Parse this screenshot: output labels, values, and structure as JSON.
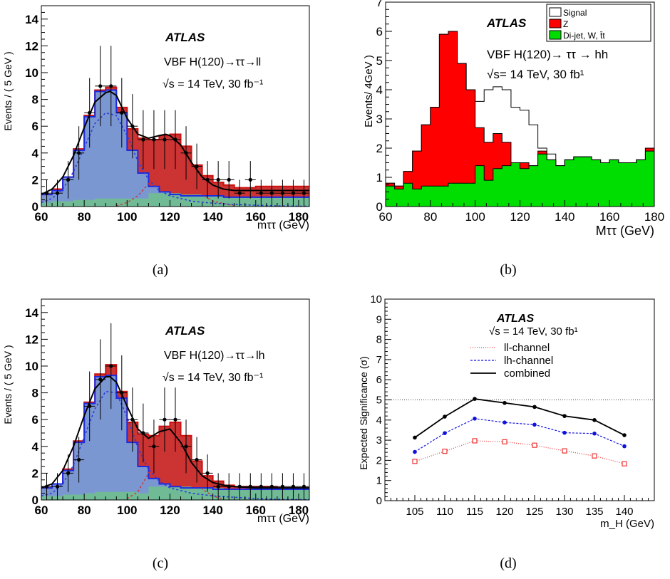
{
  "chart_data": [
    {
      "panel": "a",
      "type": "bar",
      "caption": "(a)",
      "ylabel": "Events / ( 5 GeV )",
      "xlabel": "mττ (GeV)",
      "xlim": [
        60,
        185
      ],
      "ylim": [
        0,
        15
      ],
      "xticks": [
        60,
        80,
        100,
        120,
        140,
        160,
        180
      ],
      "yticks": [
        0,
        2,
        4,
        6,
        8,
        10,
        12,
        14
      ],
      "annotations": [
        "ATLAS",
        "VBF H(120)→ττ→ll",
        "√s = 14 TeV,   30 fb⁻¹"
      ],
      "bin_edges": [
        60,
        65,
        70,
        75,
        80,
        85,
        90,
        95,
        100,
        105,
        110,
        115,
        120,
        125,
        130,
        135,
        140,
        145,
        150,
        155,
        160,
        165,
        170,
        175,
        180,
        185
      ],
      "series": [
        {
          "role": "bkg-green",
          "color": "#6fbf8f",
          "values": [
            0.3,
            0.4,
            0.4,
            0.5,
            0.5,
            0.6,
            0.6,
            0.6,
            0.6,
            0.6,
            1,
            1,
            1,
            0.9,
            0.9,
            0.8,
            0.8,
            0.7,
            0.7,
            0.7,
            0.7,
            0.7,
            0.7,
            0.7,
            0.7
          ]
        },
        {
          "role": "blue",
          "color": "#7b97d1",
          "values": [
            0.9,
            1.2,
            2.2,
            4.2,
            6.7,
            8.6,
            8.7,
            7,
            4.2,
            2.5,
            1.5,
            1.1,
            0.9,
            0.8,
            0.8,
            0.8,
            0.8,
            0.7,
            0.7,
            0.7,
            0.7,
            0.7,
            0.7,
            0.7,
            0.7
          ]
        },
        {
          "role": "red",
          "color": "#cc3333",
          "values": [
            0.9,
            1.3,
            2.2,
            4.3,
            6.8,
            8.7,
            8.9,
            7.4,
            5.8,
            5.1,
            5,
            5.3,
            5.4,
            4.5,
            3.1,
            2.3,
            1.8,
            1.6,
            1.4,
            1.4,
            1.5,
            1.5,
            1.5,
            1.5,
            1.5
          ]
        }
      ],
      "points": {
        "x": [
          62.5,
          67.5,
          72.5,
          77.5,
          82.5,
          87.5,
          92.5,
          97.5,
          102.5,
          107.5,
          112.5,
          117.5,
          122.5,
          127.5,
          132.5,
          137.5,
          142.5,
          147.5,
          152.5,
          157.5,
          162.5,
          167.5,
          172.5,
          177.5,
          182.5
        ],
        "y": [
          1,
          1,
          2,
          4,
          7,
          9,
          9,
          7,
          6,
          5,
          5,
          5,
          5,
          4,
          3,
          2,
          2,
          2,
          1,
          2,
          1,
          1,
          1,
          1,
          1
        ],
        "err": [
          1,
          1,
          1.4,
          2,
          2.6,
          3,
          3,
          2.6,
          2.4,
          2.2,
          2.2,
          2.2,
          2.2,
          2,
          1.7,
          1.4,
          1.4,
          1.4,
          1,
          1.4,
          1,
          1,
          1,
          1,
          1
        ]
      },
      "curves": {
        "total": {
          "color": "#000000",
          "x": [
            60,
            65,
            70,
            75,
            80,
            85,
            90,
            92,
            95,
            100,
            105,
            110,
            115,
            118,
            120,
            125,
            130,
            135,
            140,
            145,
            150,
            160,
            170,
            180,
            185
          ],
          "y": [
            0.9,
            1.3,
            2.2,
            3.8,
            5.9,
            7.8,
            8.5,
            8.6,
            8.3,
            6.6,
            5.4,
            5.1,
            5.3,
            5.4,
            5.3,
            4.6,
            3.3,
            2.2,
            1.6,
            1.3,
            1.2,
            1.2,
            1.2,
            1.2,
            1.2
          ]
        },
        "blue_fit": {
          "color": "#2c3dd8",
          "x": [
            60,
            65,
            70,
            75,
            80,
            85,
            90,
            95,
            100,
            105,
            110,
            115,
            120,
            130,
            140,
            150,
            160,
            170,
            185
          ],
          "y": [
            0.3,
            0.6,
            1.3,
            2.6,
            4.4,
            6.2,
            7,
            6.8,
            5.3,
            3.4,
            2,
            1.2,
            0.8,
            0.4,
            0.25,
            0.15,
            0.1,
            0.05,
            0.02
          ]
        },
        "red_fit": {
          "color": "#d03030",
          "x": [
            95,
            100,
            105,
            110,
            115,
            120,
            125,
            130,
            135,
            140,
            150
          ],
          "y": [
            0.05,
            0.3,
            0.8,
            1.7,
            2.8,
            3.3,
            2.8,
            1.8,
            0.9,
            0.4,
            0.05
          ]
        }
      }
    },
    {
      "panel": "b",
      "type": "bar",
      "caption": "(b)",
      "ylabel": "Events/ 4GeV )",
      "xlabel": "Mττ (GeV)",
      "xlim": [
        60,
        180
      ],
      "ylim": [
        0,
        7
      ],
      "xticks": [
        60,
        80,
        100,
        120,
        140,
        160,
        180
      ],
      "yticks": [
        0,
        1,
        2,
        3,
        4,
        5,
        6,
        7
      ],
      "annotations": [
        "ATLAS",
        "VBF H(120)→ ττ → hh",
        "√s= 14 TeV, 30 fb¹"
      ],
      "legend": [
        "Signal",
        "Z",
        "Di-jet, W, t̄t"
      ],
      "legend_position": "top-right",
      "bin_edges": [
        60,
        64,
        68,
        72,
        76,
        80,
        84,
        88,
        92,
        96,
        100,
        104,
        108,
        112,
        116,
        120,
        124,
        128,
        132,
        136,
        140,
        144,
        148,
        152,
        156,
        160,
        164,
        168,
        172,
        176,
        180
      ],
      "series": [
        {
          "name": "Di-jet, W, t̄t",
          "color": "#00dd00",
          "values": [
            0.7,
            0.6,
            0.8,
            0.6,
            0.7,
            0.7,
            0.7,
            0.8,
            0.8,
            0.8,
            1.4,
            0.9,
            1.3,
            1.4,
            1.5,
            1.3,
            1.4,
            1.8,
            1.6,
            1.4,
            1.6,
            1.7,
            1.7,
            1.6,
            1.5,
            1.6,
            1.5,
            1.5,
            1.6,
            1.9
          ]
        },
        {
          "name": "Z",
          "color": "#ff0000",
          "values": [
            0.8,
            0.7,
            1.2,
            1.9,
            2.8,
            3.4,
            5.9,
            6,
            4.9,
            4,
            2.7,
            2.2,
            2.5,
            2.2,
            1.5,
            1.5,
            1.4,
            1.9,
            1.6,
            1.4,
            1.6,
            1.7,
            1.7,
            1.6,
            1.5,
            1.6,
            1.5,
            1.5,
            1.6,
            2
          ]
        },
        {
          "name": "Signal",
          "color": "#ffffff",
          "values": [
            0.8,
            0.7,
            1.2,
            1.9,
            2.8,
            3.4,
            5.9,
            6,
            4.9,
            4,
            3.6,
            4,
            4.1,
            4,
            3.4,
            3.3,
            2.8,
            2,
            1.8,
            1.4,
            1.6,
            1.7,
            1.7,
            1.6,
            1.5,
            1.6,
            1.5,
            1.5,
            1.6,
            2
          ]
        }
      ]
    },
    {
      "panel": "c",
      "type": "bar",
      "caption": "(c)",
      "ylabel": "Events / ( 5 GeV )",
      "xlabel": "mττ (GeV)",
      "xlim": [
        60,
        185
      ],
      "ylim": [
        0,
        15
      ],
      "xticks": [
        60,
        80,
        100,
        120,
        140,
        160,
        180
      ],
      "yticks": [
        0,
        2,
        4,
        6,
        8,
        10,
        12,
        14
      ],
      "annotations": [
        "ATLAS",
        "VBF H(120)→ττ→lh",
        "√s = 14 TeV,   30 fb⁻¹"
      ],
      "bin_edges": [
        60,
        65,
        70,
        75,
        80,
        85,
        90,
        95,
        100,
        105,
        110,
        115,
        120,
        125,
        130,
        135,
        140,
        145,
        150,
        155,
        160,
        165,
        170,
        175,
        180,
        185
      ],
      "series": [
        {
          "role": "bkg-green",
          "color": "#6fbf8f",
          "values": [
            0.3,
            0.3,
            0.4,
            0.4,
            0.5,
            0.6,
            0.6,
            0.6,
            0.6,
            0.5,
            1,
            1,
            1,
            1,
            0.9,
            0.9,
            0.9,
            0.8,
            0.8,
            0.8,
            0.8,
            0.8,
            0.8,
            0.8,
            0.8
          ]
        },
        {
          "role": "blue",
          "color": "#7b97d1",
          "values": [
            0.9,
            1.2,
            2.2,
            4.3,
            7.2,
            9.2,
            9.3,
            7.6,
            4.3,
            2.5,
            1.6,
            1.2,
            1,
            0.9,
            0.9,
            0.9,
            0.8,
            0.8,
            0.8,
            0.8,
            0.8,
            0.8,
            0.8,
            0.8,
            0.8
          ]
        },
        {
          "role": "red",
          "color": "#cc3333",
          "values": [
            0.9,
            1.2,
            2.3,
            4.4,
            7.3,
            9.4,
            10.1,
            8.1,
            5.8,
            4.9,
            4.8,
            5.5,
            5.8,
            4.8,
            2.9,
            1.8,
            1.4,
            1.1,
            1,
            1,
            1,
            1,
            0.9,
            0.9,
            0.9
          ]
        }
      ],
      "points": {
        "x": [
          62.5,
          67.5,
          72.5,
          77.5,
          82.5,
          87.5,
          92.5,
          97.5,
          102.5,
          107.5,
          112.5,
          117.5,
          122.5,
          127.5,
          132.5,
          137.5,
          142.5,
          147.5,
          152.5,
          157.5,
          162.5,
          167.5,
          172.5,
          177.5,
          182.5
        ],
        "y": [
          1,
          1,
          2,
          3,
          7,
          9,
          10,
          8,
          6,
          5,
          4,
          6,
          6,
          4,
          3,
          2,
          1,
          1,
          1,
          1,
          1,
          1,
          1,
          1,
          1
        ],
        "err": [
          1,
          1,
          1.4,
          1.7,
          2.6,
          3,
          3.2,
          2.8,
          2.4,
          2.2,
          2,
          2.4,
          2.4,
          2,
          1.7,
          1.4,
          1,
          1,
          1,
          1,
          1,
          1,
          1,
          1,
          1
        ]
      },
      "curves": {
        "total": {
          "color": "#000000",
          "x": [
            60,
            65,
            70,
            75,
            80,
            85,
            90,
            92,
            95,
            100,
            105,
            110,
            115,
            120,
            125,
            130,
            135,
            140,
            145,
            150,
            160,
            170,
            185
          ],
          "y": [
            0.9,
            1.2,
            2.2,
            4,
            6.3,
            8.3,
            9.2,
            9.2,
            8.8,
            7,
            5.3,
            4.6,
            5.1,
            5.3,
            4.3,
            2.8,
            1.8,
            1.3,
            1.1,
            1,
            0.9,
            0.9,
            0.9
          ]
        },
        "blue_fit": {
          "color": "#2c3dd8",
          "x": [
            60,
            65,
            70,
            75,
            80,
            85,
            90,
            95,
            100,
            105,
            110,
            115,
            120,
            130,
            140,
            150,
            160,
            170,
            185
          ],
          "y": [
            0.3,
            0.5,
            1.2,
            2.6,
            4.7,
            6.8,
            8.1,
            8,
            6.2,
            3.9,
            2.3,
            1.4,
            0.9,
            0.5,
            0.3,
            0.2,
            0.1,
            0.05,
            0.02
          ]
        },
        "red_fit": {
          "color": "#d03030",
          "x": [
            100,
            105,
            110,
            115,
            120,
            125,
            130,
            135,
            140,
            145
          ],
          "y": [
            0.1,
            0.6,
            2,
            3.6,
            4.3,
            3.6,
            2,
            0.8,
            0.3,
            0.05
          ]
        }
      }
    },
    {
      "panel": "d",
      "type": "line",
      "caption": "(d)",
      "ylabel": "Expected Significance (σ)",
      "xlabel": "m_H (GeV)",
      "xlim": [
        100,
        145
      ],
      "ylim": [
        0,
        10
      ],
      "xticks": [
        105,
        110,
        115,
        120,
        125,
        130,
        135,
        140
      ],
      "yticks": [
        0,
        1,
        2,
        3,
        4,
        5,
        6,
        7,
        8,
        9,
        10
      ],
      "annotations": [
        "ATLAS",
        "√s = 14 TeV, 30 fb¹"
      ],
      "legend": [
        "ll-channel",
        "lh-channel",
        "combined"
      ],
      "legend_position": "top-left",
      "reference_line": 5,
      "x": [
        105,
        110,
        115,
        120,
        125,
        130,
        135,
        140
      ],
      "series": [
        {
          "name": "ll-channel",
          "color": "#ee3333",
          "values": [
            1.95,
            2.45,
            2.97,
            2.92,
            2.75,
            2.47,
            2.22,
            1.83
          ]
        },
        {
          "name": "lh-channel",
          "color": "#1111dd",
          "values": [
            2.42,
            3.35,
            4.07,
            3.88,
            3.77,
            3.37,
            3.33,
            2.7
          ]
        },
        {
          "name": "combined",
          "color": "#000000",
          "values": [
            3.13,
            4.17,
            5.05,
            4.85,
            4.65,
            4.2,
            4.0,
            3.25
          ]
        }
      ]
    }
  ]
}
